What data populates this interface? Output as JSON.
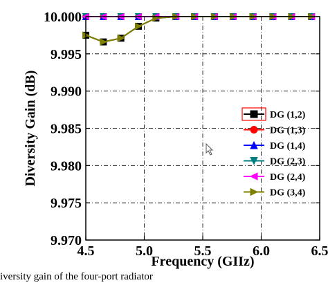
{
  "chart_data": {
    "type": "line",
    "xlabel": "Frequency (GIIz)",
    "ylabel": "Diversity Gain (dB)",
    "xlim": [
      4.5,
      6.5
    ],
    "ylim": [
      9.97,
      10.0
    ],
    "x_ticks": [
      "4.5",
      "5.0",
      "5.5",
      "6.0",
      "6.5"
    ],
    "y_ticks": [
      "9.970",
      "9.975",
      "9.980",
      "9.985",
      "9.990",
      "9.995",
      "10.000"
    ],
    "grid": "dash-dot",
    "legend_position": "right",
    "x": [
      4.5,
      4.65,
      4.8,
      4.95,
      5.1,
      5.27,
      5.43,
      5.6,
      5.76,
      5.93,
      6.1,
      6.26,
      6.43
    ],
    "series": [
      {
        "name": "DG (1,2)",
        "color": "#000000",
        "marker": "square",
        "values": [
          9.9975,
          9.9966,
          9.9971,
          9.9987,
          9.9998,
          10.0,
          10.0,
          10.0,
          10.0,
          10.0,
          10.0,
          10.0,
          10.0
        ]
      },
      {
        "name": "DG (1,3)",
        "color": "#ff0000",
        "marker": "circle",
        "values": [
          10.0,
          10.0,
          10.0,
          10.0,
          10.0,
          10.0,
          10.0,
          10.0,
          10.0,
          10.0,
          10.0,
          10.0,
          10.0
        ]
      },
      {
        "name": "DG (1,4)",
        "color": "#0000ff",
        "marker": "triangle-up",
        "values": [
          10.0,
          10.0,
          10.0,
          10.0,
          10.0,
          10.0,
          10.0,
          10.0,
          10.0,
          10.0,
          10.0,
          10.0,
          10.0
        ]
      },
      {
        "name": "DG (2,3)",
        "color": "#008080",
        "marker": "triangle-down",
        "values": [
          10.0,
          10.0,
          10.0,
          10.0,
          10.0,
          10.0,
          10.0,
          10.0,
          10.0,
          10.0,
          10.0,
          10.0,
          10.0
        ]
      },
      {
        "name": "DG (2,4)",
        "color": "#ff00ff",
        "marker": "triangle-left",
        "values": [
          10.0,
          10.0,
          10.0,
          10.0,
          10.0,
          10.0,
          10.0,
          10.0,
          10.0,
          10.0,
          10.0,
          10.0,
          10.0
        ]
      },
      {
        "name": "DG (3,4)",
        "color": "#808000",
        "marker": "triangle-right",
        "values": [
          9.9975,
          9.9966,
          9.9971,
          9.9987,
          9.9998,
          10.0,
          10.0,
          10.0,
          10.0,
          10.0,
          10.0,
          10.0,
          10.0
        ]
      }
    ]
  },
  "caption": "iversity gain of the four-port radiator"
}
